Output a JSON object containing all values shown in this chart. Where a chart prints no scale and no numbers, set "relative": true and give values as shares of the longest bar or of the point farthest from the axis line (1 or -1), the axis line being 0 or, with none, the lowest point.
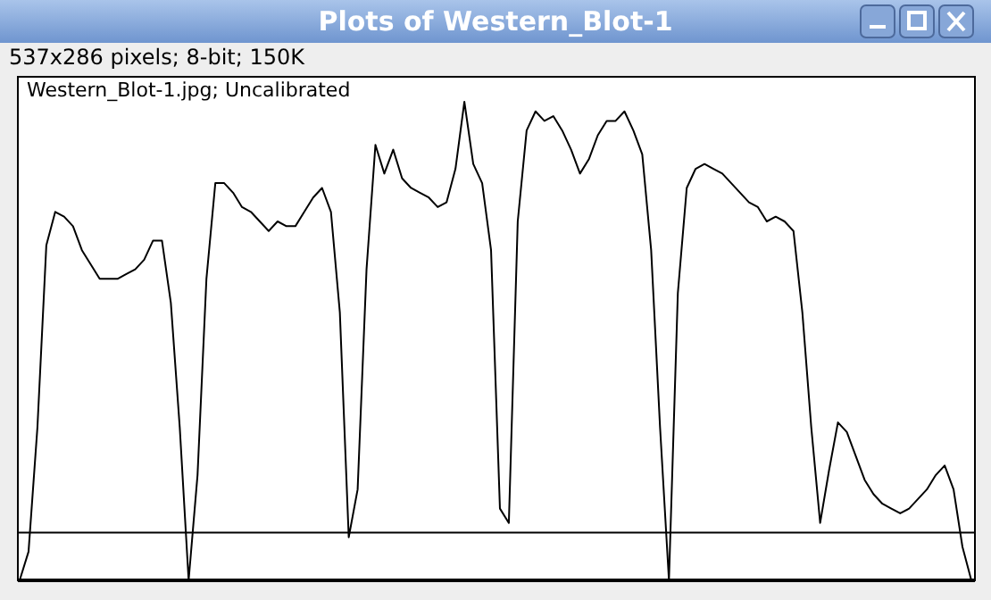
{
  "chart_data": {
    "type": "line",
    "title": "Plots of Western_Blot-1",
    "subtitle": "537x286 pixels; 8-bit; 150K",
    "annotations": [
      "Western_Blot-1.jpg; Uncalibrated"
    ],
    "relative": true,
    "marker": "none",
    "line_style": "solid",
    "categories": [
      null,
      null,
      null,
      null,
      null,
      null,
      null,
      null,
      null,
      null,
      null,
      null,
      null,
      null,
      null,
      null,
      null,
      null,
      null,
      null,
      null,
      null,
      null,
      null,
      null,
      null,
      null,
      null,
      null,
      null,
      null,
      null,
      null,
      null,
      null,
      null,
      null,
      null,
      null,
      null,
      null,
      null,
      null,
      null,
      null,
      null,
      null,
      null,
      null,
      null,
      null,
      null,
      null,
      null,
      null,
      null,
      null,
      null,
      null,
      null,
      null,
      null,
      null,
      null,
      null,
      null,
      null,
      null,
      null,
      null,
      null,
      null,
      null,
      null,
      null,
      null,
      null,
      null,
      null,
      null,
      null,
      null,
      null,
      null,
      null,
      null,
      null,
      null,
      null,
      null,
      null,
      null,
      null,
      null,
      null,
      null,
      null,
      null,
      null,
      null,
      null,
      null,
      null,
      null,
      null,
      null,
      null,
      null
    ],
    "series": [
      {
        "color": "#000000",
        "values": [
          0,
          0.06,
          0.32,
          0.7,
          0.77,
          0.76,
          0.74,
          0.69,
          0.66,
          0.63,
          0.63,
          0.63,
          0.64,
          0.65,
          0.67,
          0.71,
          0.71,
          0.58,
          0.32,
          0,
          0.22,
          0.63,
          0.83,
          0.83,
          0.81,
          0.78,
          0.77,
          0.75,
          0.73,
          0.75,
          0.74,
          0.74,
          0.77,
          0.8,
          0.82,
          0.77,
          0.56,
          0.09,
          0.19,
          0.65,
          0.91,
          0.85,
          0.9,
          0.84,
          0.82,
          0.81,
          0.8,
          0.78,
          0.79,
          0.86,
          1,
          0.87,
          0.83,
          0.69,
          0.15,
          0.12,
          0.75,
          0.94,
          0.98,
          0.96,
          0.97,
          0.94,
          0.9,
          0.85,
          0.88,
          0.93,
          0.96,
          0.96,
          0.98,
          0.94,
          0.89,
          0.69,
          0.32,
          0,
          0.6,
          0.82,
          0.86,
          0.87,
          0.86,
          0.85,
          0.83,
          0.81,
          0.79,
          0.78,
          0.75,
          0.76,
          0.75,
          0.73,
          0.56,
          0.32,
          0.12,
          0.23,
          0.33,
          0.31,
          0.26,
          0.21,
          0.18,
          0.16,
          0.15,
          0.14,
          0.15,
          0.17,
          0.19,
          0.22,
          0.24,
          0.19,
          0.07,
          0
        ]
      }
    ],
    "ref_lines": [
      {
        "axis": "y",
        "value": 0.1,
        "color": "#000000"
      }
    ]
  }
}
